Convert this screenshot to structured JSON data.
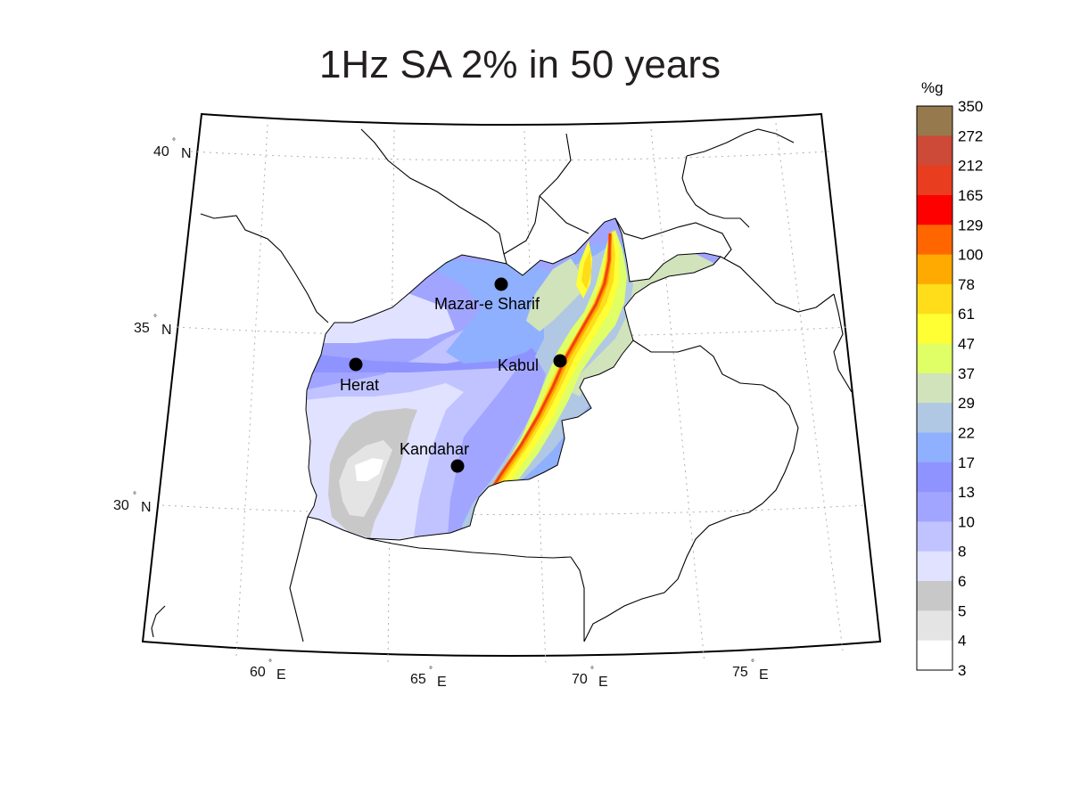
{
  "title": "1Hz SA 2% in 50 years",
  "colorbar": {
    "unit": "%g",
    "levels": [
      {
        "value": "350",
        "color": "#967a4d"
      },
      {
        "value": "272",
        "color": "#cc4a37"
      },
      {
        "value": "212",
        "color": "#e83d1f"
      },
      {
        "value": "165",
        "color": "#ff0000"
      },
      {
        "value": "129",
        "color": "#ff6600"
      },
      {
        "value": "100",
        "color": "#ffaa00"
      },
      {
        "value": "78",
        "color": "#ffdd1a"
      },
      {
        "value": "61",
        "color": "#ffff33"
      },
      {
        "value": "47",
        "color": "#e0ff66"
      },
      {
        "value": "37",
        "color": "#d0e3bb"
      },
      {
        "value": "29",
        "color": "#b0c8e3"
      },
      {
        "value": "22",
        "color": "#8fb0ff"
      },
      {
        "value": "17",
        "color": "#8f93ff"
      },
      {
        "value": "13",
        "color": "#a1a5ff"
      },
      {
        "value": "10",
        "color": "#c0c3ff"
      },
      {
        "value": "8",
        "color": "#e0e2ff"
      },
      {
        "value": "6",
        "color": "#c8c8c8"
      },
      {
        "value": "5",
        "color": "#e4e4e4"
      },
      {
        "value": "4",
        "color": "#ffffff"
      },
      {
        "value": "3",
        "color": ""
      }
    ]
  },
  "axes": {
    "lat_ticks": [
      {
        "num": "40",
        "dir": "N"
      },
      {
        "num": "35",
        "dir": "N"
      },
      {
        "num": "30",
        "dir": "N"
      }
    ],
    "lon_ticks": [
      {
        "num": "60",
        "dir": "E"
      },
      {
        "num": "65",
        "dir": "E"
      },
      {
        "num": "70",
        "dir": "E"
      },
      {
        "num": "75",
        "dir": "E"
      }
    ]
  },
  "cities": [
    {
      "name": "Mazar-e Sharif"
    },
    {
      "name": "Herat"
    },
    {
      "name": "Kabul"
    },
    {
      "name": "Kandahar"
    }
  ]
}
